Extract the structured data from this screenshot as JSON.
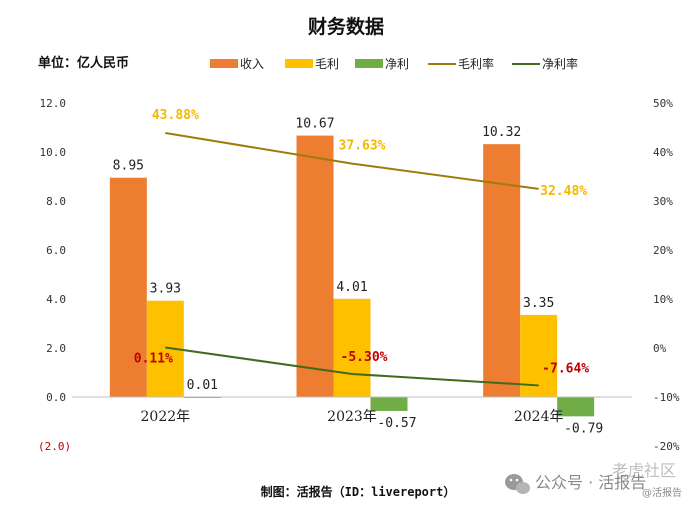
{
  "title": "财务数据",
  "unit": "单位：亿人民币",
  "footer": "制图：活报告（ID：livereport）",
  "watermark": {
    "account": "公众号 · 活报告",
    "community": "老虎社区",
    "handle": "@活报告"
  },
  "colors": {
    "revenue": "#ed7d31",
    "gross_profit": "#ffc000",
    "net_profit": "#70ad47",
    "gross_margin_line": "#9c7d0c",
    "net_margin_line": "#3f6b1f",
    "gross_margin_label": "#f5b800",
    "net_margin_label": "#c00000"
  },
  "chart_data": {
    "type": "bar",
    "categories": [
      "2022年",
      "2023年",
      "2024年"
    ],
    "series": [
      {
        "name": "收入",
        "type": "bar",
        "values": [
          8.95,
          10.67,
          10.32
        ],
        "labels": [
          "8.95",
          "10.67",
          "10.32"
        ]
      },
      {
        "name": "毛利",
        "type": "bar",
        "values": [
          3.93,
          4.01,
          3.35
        ],
        "labels": [
          "3.93",
          "4.01",
          "3.35"
        ]
      },
      {
        "name": "净利",
        "type": "bar",
        "values": [
          0.01,
          -0.57,
          -0.79
        ],
        "labels": [
          "0.01",
          "-0.57",
          "-0.79"
        ]
      },
      {
        "name": "毛利率",
        "type": "line",
        "axis": "right",
        "values": [
          43.88,
          37.63,
          32.48
        ],
        "labels": [
          "43.88%",
          "37.63%",
          "32.48%"
        ]
      },
      {
        "name": "净利率",
        "type": "line",
        "axis": "right",
        "values": [
          0.11,
          -5.3,
          -7.64
        ],
        "labels": [
          "0.11%",
          "-5.30%",
          "-7.64%"
        ]
      }
    ],
    "left_axis": {
      "ylim": [
        -2,
        12
      ],
      "ticks": [
        12,
        10,
        8,
        6,
        4,
        2,
        0,
        -2
      ],
      "tick_labels": [
        "12.0",
        "10.0",
        "8.0",
        "6.0",
        "4.0",
        "2.0",
        "0.0",
        "(2.0)"
      ]
    },
    "right_axis": {
      "ylim": [
        -20,
        50
      ],
      "ticks": [
        50,
        40,
        30,
        20,
        10,
        0,
        -10,
        -20
      ],
      "tick_labels": [
        "50%",
        "40%",
        "30%",
        "20%",
        "10%",
        "0%",
        "-10%",
        "-20%"
      ]
    },
    "grid": false,
    "legend_position": "top"
  }
}
